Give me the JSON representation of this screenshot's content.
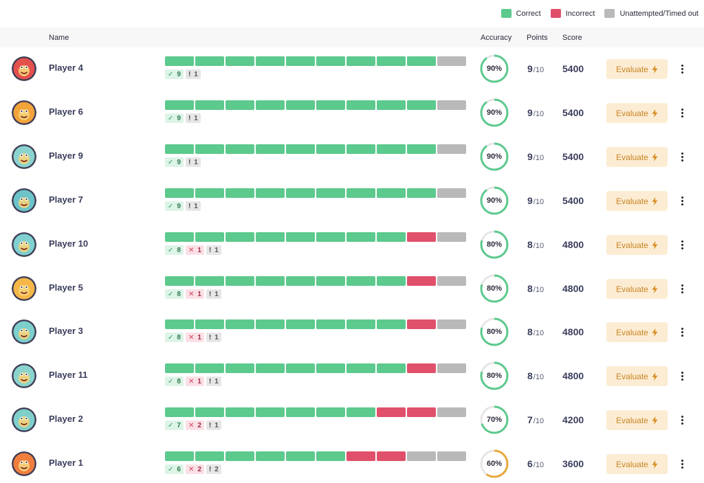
{
  "legend": {
    "correct_label": "Correct",
    "incorrect_label": "Incorrect",
    "unattempted_label": "Unattempted/Timed out",
    "colors": {
      "correct": "#5cc98d",
      "incorrect": "#e0506b",
      "unattempted": "#b9b9b9"
    }
  },
  "table": {
    "headers": {
      "name": "Name",
      "accuracy": "Accuracy",
      "points": "Points",
      "score": "Score"
    },
    "button_label": "Evaluate",
    "ring_colors": {
      "high": "#5cc98d",
      "medium": "#e9a83c",
      "track": "#e6e6e6"
    },
    "rows": [
      {
        "name": "Player 4",
        "avatar_color": "#e4504c",
        "results": [
          "c",
          "c",
          "c",
          "c",
          "c",
          "c",
          "c",
          "c",
          "c",
          "u"
        ],
        "correct": "9",
        "incorrect": "0",
        "unattempted": "1",
        "accuracy": 90,
        "accuracy_label": "90%",
        "points": "9",
        "points_total": "/10",
        "score": "5400",
        "ring": "high"
      },
      {
        "name": "Player 6",
        "avatar_color": "#f2a33a",
        "results": [
          "c",
          "c",
          "c",
          "c",
          "c",
          "c",
          "c",
          "c",
          "c",
          "u"
        ],
        "correct": "9",
        "incorrect": "0",
        "unattempted": "1",
        "accuracy": 90,
        "accuracy_label": "90%",
        "points": "9",
        "points_total": "/10",
        "score": "5400",
        "ring": "high"
      },
      {
        "name": "Player 9",
        "avatar_color": "#8ad3cf",
        "results": [
          "c",
          "c",
          "c",
          "c",
          "c",
          "c",
          "c",
          "c",
          "c",
          "u"
        ],
        "correct": "9",
        "incorrect": "0",
        "unattempted": "1",
        "accuracy": 90,
        "accuracy_label": "90%",
        "points": "9",
        "points_total": "/10",
        "score": "5400",
        "ring": "high"
      },
      {
        "name": "Player 7",
        "avatar_color": "#6cc3c8",
        "results": [
          "c",
          "c",
          "c",
          "c",
          "c",
          "c",
          "c",
          "c",
          "c",
          "u"
        ],
        "correct": "9",
        "incorrect": "0",
        "unattempted": "1",
        "accuracy": 90,
        "accuracy_label": "90%",
        "points": "9",
        "points_total": "/10",
        "score": "5400",
        "ring": "high"
      },
      {
        "name": "Player 10",
        "avatar_color": "#7fd0cf",
        "results": [
          "c",
          "c",
          "c",
          "c",
          "c",
          "c",
          "c",
          "c",
          "i",
          "u"
        ],
        "correct": "8",
        "incorrect": "1",
        "unattempted": "1",
        "accuracy": 80,
        "accuracy_label": "80%",
        "points": "8",
        "points_total": "/10",
        "score": "4800",
        "ring": "high"
      },
      {
        "name": "Player 5",
        "avatar_color": "#f5b748",
        "results": [
          "c",
          "c",
          "c",
          "c",
          "c",
          "c",
          "c",
          "c",
          "i",
          "u"
        ],
        "correct": "8",
        "incorrect": "1",
        "unattempted": "1",
        "accuracy": 80,
        "accuracy_label": "80%",
        "points": "8",
        "points_total": "/10",
        "score": "4800",
        "ring": "high"
      },
      {
        "name": "Player 3",
        "avatar_color": "#7ccfca",
        "results": [
          "c",
          "c",
          "c",
          "c",
          "c",
          "c",
          "c",
          "c",
          "i",
          "u"
        ],
        "correct": "8",
        "incorrect": "1",
        "unattempted": "1",
        "accuracy": 80,
        "accuracy_label": "80%",
        "points": "8",
        "points_total": "/10",
        "score": "4800",
        "ring": "high"
      },
      {
        "name": "Player 11",
        "avatar_color": "#8bd4cd",
        "results": [
          "c",
          "c",
          "c",
          "c",
          "c",
          "c",
          "c",
          "c",
          "i",
          "u"
        ],
        "correct": "8",
        "incorrect": "1",
        "unattempted": "1",
        "accuracy": 80,
        "accuracy_label": "80%",
        "points": "8",
        "points_total": "/10",
        "score": "4800",
        "ring": "high"
      },
      {
        "name": "Player 2",
        "avatar_color": "#7fd0cb",
        "results": [
          "c",
          "c",
          "c",
          "c",
          "c",
          "c",
          "c",
          "i",
          "i",
          "u"
        ],
        "correct": "7",
        "incorrect": "2",
        "unattempted": "1",
        "accuracy": 70,
        "accuracy_label": "70%",
        "points": "7",
        "points_total": "/10",
        "score": "4200",
        "ring": "high"
      },
      {
        "name": "Player 1",
        "avatar_color": "#f07e3f",
        "results": [
          "c",
          "c",
          "c",
          "c",
          "c",
          "c",
          "i",
          "i",
          "u",
          "u"
        ],
        "correct": "6",
        "incorrect": "2",
        "unattempted": "2",
        "accuracy": 60,
        "accuracy_label": "60%",
        "points": "6",
        "points_total": "/10",
        "score": "3600",
        "ring": "medium"
      }
    ]
  }
}
